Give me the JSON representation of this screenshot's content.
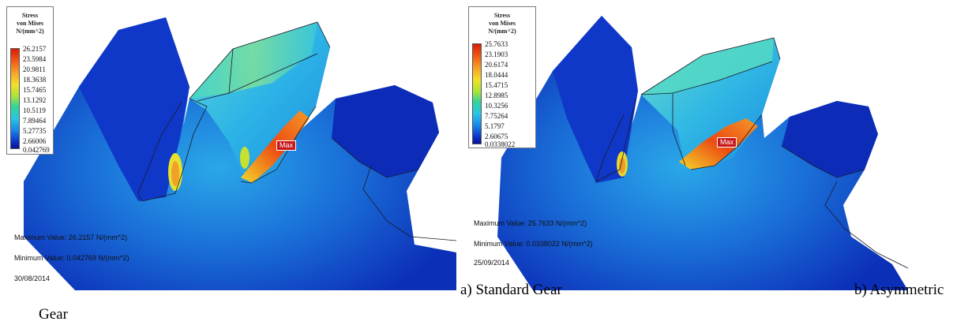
{
  "panels": [
    {
      "legend_title": [
        "Stress",
        "von Mises",
        "N/(mm^2)"
      ],
      "legend_ticks": [
        "26.2157",
        "23.5984",
        "20.9811",
        "18.3638",
        "15.7465",
        "13.1292",
        "10.5119",
        "7.89464",
        "5.27735",
        "2.66006",
        "0.042769"
      ],
      "max_value_text": "Maximum Value: 26.2157 N/(mm^2)",
      "min_value_text": "Minimum Value: 0.042769 N/(mm^2)",
      "date": "30/08/2014",
      "max_marker": "Max"
    },
    {
      "legend_title": [
        "Stress",
        "von Mises",
        "N/(mm^2)"
      ],
      "legend_ticks": [
        "25.7633",
        "23.1903",
        "20.6174",
        "18.0444",
        "15.4715",
        "12.8985",
        "10.3256",
        "7.75264",
        "5.1797",
        "2.60675",
        "0.0338022"
      ],
      "max_value_text": "Maximum Value: 25.7633 N/(mm^2)",
      "min_value_text": "Minimum Value: 0.0338022 N/(mm^2)",
      "date": "25/09/2014",
      "max_marker": "Max"
    }
  ],
  "captions": {
    "a": "a)    Standard Gear",
    "b": "b) Asymmetric",
    "b_cont": "Gear"
  },
  "colors": {
    "high": "#d81e08",
    "mid": "#a8e43a",
    "low": "#08129a"
  }
}
